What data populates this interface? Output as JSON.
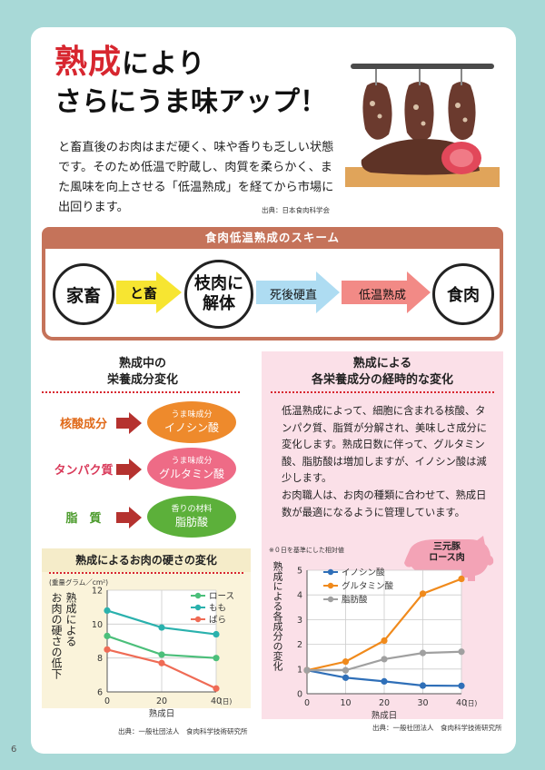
{
  "page_number": "6",
  "title": {
    "line1_red": "熟成",
    "line1_rest": "により",
    "line2": "さらにうま味アップ！"
  },
  "intro": {
    "text": "と畜直後のお肉はまだ硬く、味や香りも乏しい状態です。そのため低温で貯蔵し、肉質を柔らかく、また風味を向上させる「低温熟成」を経てから市場に出回ります。",
    "source": "出典：日本食肉科学会"
  },
  "scheme": {
    "title": "食肉低温熟成のスキーム",
    "step1": "家畜",
    "arrow1": "と畜",
    "step2_line1": "枝肉に",
    "step2_line2": "解体",
    "arrow2": "死後硬直",
    "arrow3": "低温熟成",
    "step3": "食肉"
  },
  "nutrients": {
    "title_line1": "熟成中の",
    "title_line2": "栄養成分変化",
    "items": [
      {
        "label": "核酸成分",
        "label_color": "#e06a1a",
        "small": "うま味成分",
        "big": "イノシン酸",
        "oval_color": "#ee8a2c"
      },
      {
        "label": "タンパク質",
        "label_color": "#d93a5a",
        "small": "うま味成分",
        "big": "グルタミン酸",
        "oval_color": "#ee6b86"
      },
      {
        "label": "脂　質",
        "label_color": "#4a9a2a",
        "small": "香りの材料",
        "big": "脂肪酸",
        "oval_color": "#5cb03a"
      }
    ]
  },
  "change": {
    "title_line1": "熟成による",
    "title_line2": "各栄養成分の経時的な変化",
    "body": "低温熟成によって、細胞に含まれる核酸、タンパク質、脂質が分解され、美味しさ成分に変化します。熟成日数に伴って、グルタミン酸、脂肪酸は増加しますが、イノシン酸は減少します。\nお肉職人は、お肉の種類に合わせて、熟成日数が最適になるように管理しています。",
    "note": "※０日を基準にした相対値",
    "pig_label_line1": "三元豚",
    "pig_label_line2": "ロース肉",
    "source": "出典：一般社団法人　食肉科学技術研究所"
  },
  "hardness": {
    "title": "熟成によるお肉の硬さの変化",
    "source": "出典：一般社団法人　食肉科学技術研究所"
  },
  "chart_data": [
    {
      "type": "line",
      "title": "熟成によるお肉の硬さの変化",
      "unit": "(重量グラム／cm²)",
      "ylabel_line1": "熟成による",
      "ylabel_line2": "お肉の硬さの低下",
      "xlabel": "熟成日",
      "x_unit": "(日)",
      "x": [
        0,
        20,
        40
      ],
      "xlim": [
        0,
        40
      ],
      "ylim": [
        6,
        12
      ],
      "yticks": [
        6,
        8,
        10,
        12
      ],
      "grid": true,
      "legend_position": "top-right",
      "series": [
        {
          "name": "ロース",
          "color": "#4bbf7a",
          "values": [
            9.3,
            8.2,
            8.0
          ]
        },
        {
          "name": "もも",
          "color": "#2ab1ad",
          "values": [
            10.8,
            9.8,
            9.4
          ]
        },
        {
          "name": "ばら",
          "color": "#ef6b55",
          "values": [
            8.5,
            7.7,
            6.2
          ]
        }
      ]
    },
    {
      "type": "line",
      "ylabel": "熟成による各成分の変化",
      "xlabel": "熟成日",
      "x_unit": "(日)",
      "x": [
        0,
        10,
        20,
        30,
        40
      ],
      "xlim": [
        0,
        40
      ],
      "ylim": [
        0,
        5
      ],
      "yticks": [
        0,
        1,
        2,
        3,
        4,
        5
      ],
      "grid": true,
      "legend_position": "top-left",
      "series": [
        {
          "name": "イノシン酸",
          "color": "#2f6fb8",
          "values": [
            0.95,
            0.65,
            0.5,
            0.33,
            0.32
          ]
        },
        {
          "name": "グルタミン酸",
          "color": "#f08a1c",
          "values": [
            0.95,
            1.3,
            2.15,
            4.05,
            4.65
          ]
        },
        {
          "name": "脂肪酸",
          "color": "#a0a0a0",
          "values": [
            0.95,
            0.95,
            1.4,
            1.65,
            1.7
          ]
        }
      ]
    }
  ]
}
